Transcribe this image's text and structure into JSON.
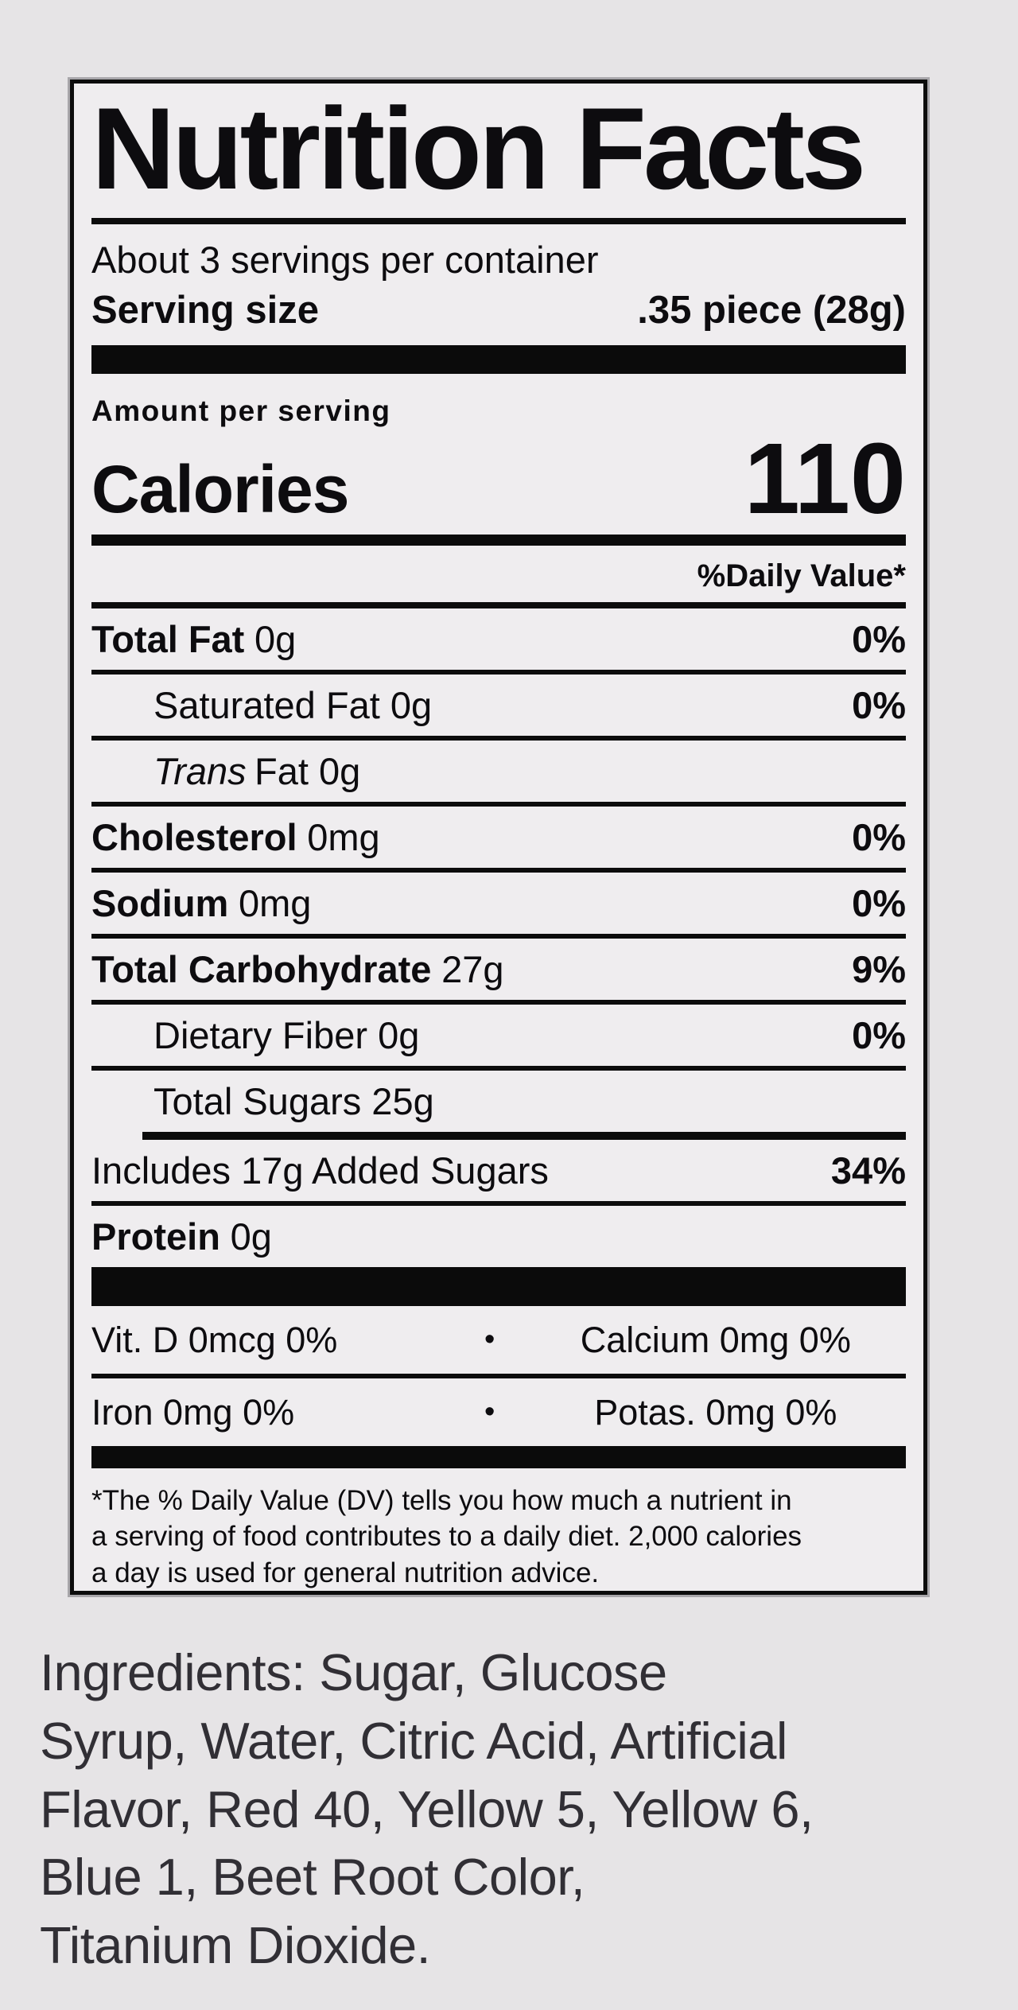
{
  "page": {
    "background_color": "#e6e4e6",
    "label_background_color": "#efedef",
    "text_color": "#0d0c0f"
  },
  "label": {
    "title": "Nutrition Facts",
    "servings_per_container": "About 3 servings per container",
    "serving_size_label": "Serving size",
    "serving_size_value": ".35 piece (28g)",
    "amount_per_serving": "Amount per serving",
    "calories_label": "Calories",
    "calories_value": "110",
    "daily_value_header": "%Daily Value*",
    "rows": [
      {
        "bold": "Total Fat",
        "reg": "0g",
        "dv": "0%"
      },
      {
        "bold": "",
        "reg": "Saturated Fat 0g",
        "dv": "0%"
      },
      {
        "italic": "Trans",
        "reg": "Fat 0g",
        "dv": ""
      },
      {
        "bold": "Cholesterol",
        "reg": "0mg",
        "dv": "0%"
      },
      {
        "bold": "Sodium",
        "reg": "0mg",
        "dv": "0%"
      },
      {
        "bold": "Total Carbohydrate",
        "reg": "27g",
        "dv": "9%"
      },
      {
        "bold": "",
        "reg": "Dietary Fiber 0g",
        "dv": "0%"
      },
      {
        "bold": "",
        "reg": "Total Sugars 25g",
        "dv": ""
      },
      {
        "bold": "",
        "reg": "Includes 17g Added Sugars",
        "dv": "34%"
      },
      {
        "bold": "Protein",
        "reg": "0g",
        "dv": ""
      }
    ],
    "micronutrients": [
      {
        "left": "Vit. D 0mcg 0%",
        "bullet": "•",
        "right": "Calcium 0mg 0%"
      },
      {
        "left": "Iron 0mg 0%",
        "bullet": "•",
        "right": "Potas. 0mg 0%"
      }
    ],
    "footnote_lines": [
      "*The % Daily Value (DV) tells you how much a nutrient in",
      "a serving of food contributes to a daily diet. 2,000 calories",
      "a day is used for general nutrition advice."
    ]
  },
  "ingredients": {
    "full_text": "Ingredients: Sugar, Glucose Syrup, Water, Citric Acid, Artificial Flavor, Red 40, Yellow 5, Yellow 6, Blue 1, Beet Root Color, Titanium Dioxide.",
    "lines": [
      "Ingredients: Sugar, Glucose",
      "Syrup, Water, Citric Acid, Artificial",
      "Flavor, Red 40, Yellow 5, Yellow 6,",
      "Blue 1, Beet Root Color,",
      "Titanium Dioxide."
    ]
  }
}
